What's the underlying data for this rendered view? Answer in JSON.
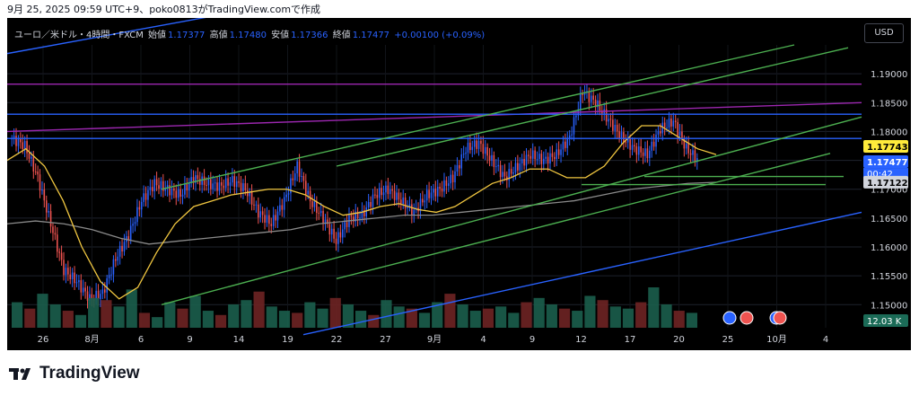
{
  "caption": "9月 25, 2025 09:59 UTC+9、poko0813がTradingView.comで作成",
  "legend": {
    "symbol": "ユーロ／米ドル・4時間・FXCM",
    "open_label": "始値",
    "open": "1.17377",
    "high_label": "高値",
    "high": "1.17480",
    "low_label": "安値",
    "low": "1.17366",
    "close_label": "終値",
    "close": "1.17477",
    "change": "+0.00100 (+0.09%)"
  },
  "currency_button": "USD",
  "brand": "TradingView",
  "colors": {
    "up": "#2962ff",
    "down": "#ef5350",
    "ma_fast": "#f0c640",
    "ma_slow": "#8a8a8a",
    "green_line": "#4caf50",
    "purple_line": "#9c27b0",
    "blue_line": "#2962ff",
    "volume_up": "#1b5e4c",
    "volume_down": "#6e2323"
  },
  "chart_data": {
    "type": "candlestick",
    "ylim": [
      1.146,
      1.195
    ],
    "y_ticks": [
      "1.19000",
      "1.18500",
      "1.18000",
      "1.17500",
      "1.17000",
      "1.16500",
      "1.16000",
      "1.15500",
      "1.15000"
    ],
    "x_ticks": [
      "26",
      "8月",
      "6",
      "9",
      "14",
      "19",
      "22",
      "27",
      "9月",
      "4",
      "9",
      "12",
      "17",
      "20",
      "25",
      "10月",
      "4"
    ],
    "price_labels": {
      "level_1": "1.17743",
      "last_price": "1.17477",
      "countdown": "00:42",
      "level_2": "1.17122",
      "volume": "12.03 K"
    },
    "bars_per_segment": 6,
    "close_path": [
      1.1788,
      1.1775,
      1.172,
      1.164,
      1.156,
      1.154,
      1.151,
      1.152,
      1.158,
      1.162,
      1.168,
      1.171,
      1.17,
      1.169,
      1.172,
      1.171,
      1.1705,
      1.1715,
      1.17,
      1.166,
      1.164,
      1.168,
      1.174,
      1.168,
      1.165,
      1.161,
      1.165,
      1.1655,
      1.169,
      1.17,
      1.168,
      1.166,
      1.169,
      1.17,
      1.172,
      1.177,
      1.178,
      1.175,
      1.172,
      1.174,
      1.176,
      1.175,
      1.176,
      1.179,
      1.187,
      1.185,
      1.182,
      1.179,
      1.177,
      1.176,
      1.1805,
      1.1818,
      1.177,
      1.1748
    ],
    "ma_fast": [
      1.175,
      1.177,
      1.174,
      1.168,
      1.16,
      1.154,
      1.151,
      1.153,
      1.159,
      1.164,
      1.167,
      1.168,
      1.169,
      1.1695,
      1.17,
      1.17,
      1.169,
      1.167,
      1.1655,
      1.166,
      1.167,
      1.1675,
      1.1665,
      1.166,
      1.167,
      1.169,
      1.171,
      1.172,
      1.1735,
      1.1735,
      1.172,
      1.172,
      1.174,
      1.178,
      1.181,
      1.181,
      1.179,
      1.177,
      1.176
    ],
    "ma_slow": [
      1.164,
      1.1645,
      1.164,
      1.163,
      1.1615,
      1.1605,
      1.161,
      1.1615,
      1.162,
      1.1625,
      1.163,
      1.164,
      1.1645,
      1.165,
      1.1655,
      1.1655,
      1.166,
      1.1665,
      1.167,
      1.1675,
      1.168,
      1.169,
      1.17,
      1.1705,
      1.171,
      1.1712
    ],
    "volume": [
      60,
      45,
      80,
      55,
      40,
      30,
      70,
      65,
      50,
      90,
      35,
      25,
      60,
      45,
      75,
      40,
      30,
      55,
      65,
      85,
      50,
      40,
      35,
      60,
      45,
      70,
      55,
      40,
      30,
      65,
      50,
      45,
      35,
      60,
      80,
      55,
      40,
      45,
      50,
      35,
      60,
      70,
      55,
      45,
      40,
      75,
      65,
      50,
      45,
      60,
      95,
      55,
      40,
      35
    ]
  }
}
